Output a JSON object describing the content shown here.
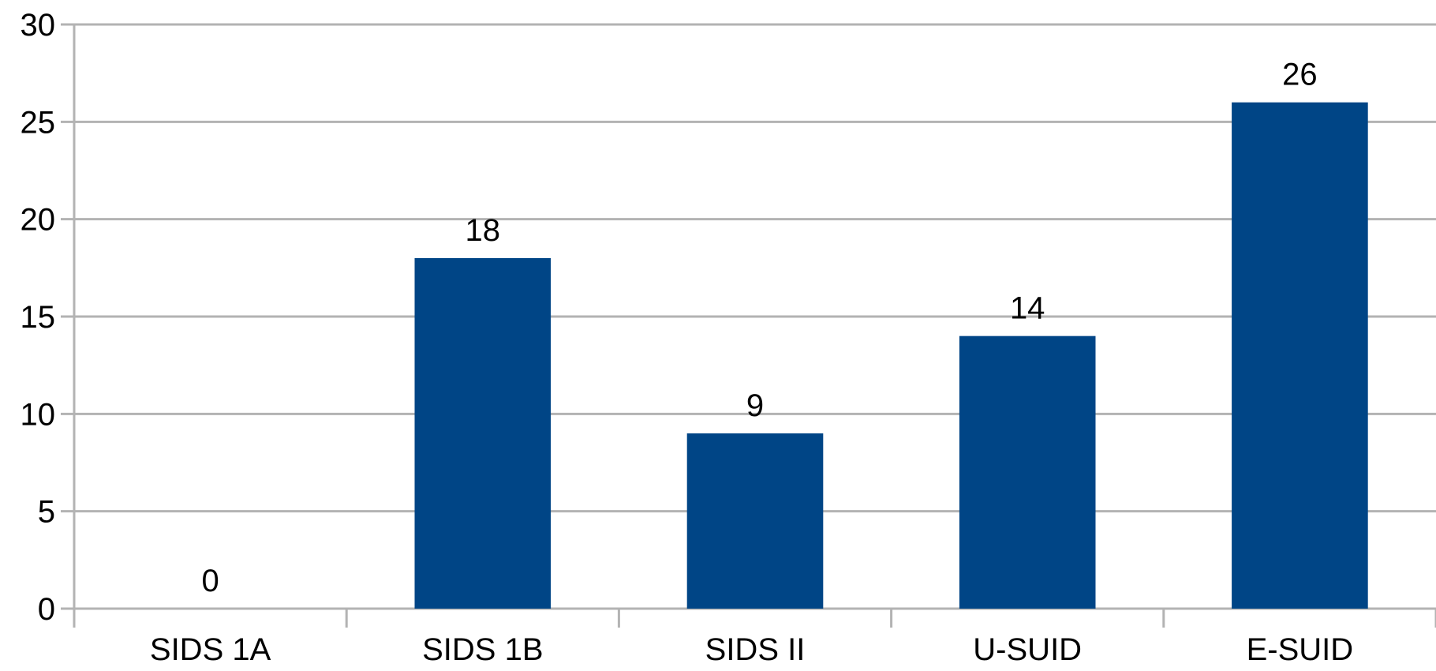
{
  "chart_data": {
    "type": "bar",
    "title": "",
    "xlabel": "",
    "ylabel": "",
    "categories": [
      "SIDS 1A",
      "SIDS 1B",
      "SIDS II",
      "U-SUID",
      "E-SUID"
    ],
    "values": [
      0,
      18,
      9,
      14,
      26
    ],
    "ylim": [
      0,
      30
    ],
    "y_ticks": [
      0,
      5,
      10,
      15,
      20,
      25,
      30
    ],
    "grid": true,
    "legend": "none",
    "data_labels": true,
    "bar_color": "#004586",
    "grid_color": "#b3b3b3",
    "text_color": "#000000"
  }
}
